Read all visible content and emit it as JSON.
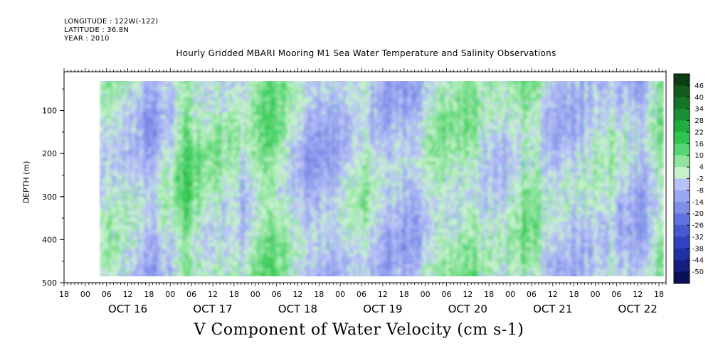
{
  "header": {
    "longitude": "LONGITUDE : 122W(-122)",
    "latitude": "LATITUDE : 36.8N",
    "year": "YEAR : 2010"
  },
  "chart_data": {
    "type": "heatmap",
    "title": "Hourly Gridded MBARI Mooring M1 Sea Water Temperature and Salinity Observations",
    "bottom_title": "V Component of Water Velocity (cm s-1)",
    "ylabel": "DEPTH (m)",
    "xlabel": "",
    "y_ticks": [
      100,
      200,
      300,
      400,
      500
    ],
    "ylim": [
      500,
      10
    ],
    "y_data_range": [
      20,
      490
    ],
    "x_range_hours": "2010-10-15T18:00 to 2010-10-22T20:00",
    "x_data_start": "2010-10-16T04:00",
    "x_data_end": "2010-10-22T19:00",
    "hour_tick_labels": [
      "00",
      "06",
      "12",
      "18"
    ],
    "day_labels": [
      "OCT 16",
      "OCT 17",
      "OCT 18",
      "OCT 19",
      "OCT 20",
      "OCT 21",
      "OCT 22"
    ],
    "colorbar_labels": [
      "46",
      "40",
      "34",
      "28",
      "22",
      "16",
      "10",
      "4",
      "-2",
      "-8",
      "-14",
      "-20",
      "-26",
      "-32",
      "-38",
      "-44",
      "-50"
    ],
    "colorbar_colors": [
      "#0a3d12",
      "#0f5a1c",
      "#137526",
      "#189033",
      "#1fae3e",
      "#2ec64e",
      "#55d672",
      "#8fe59e",
      "#c6f1cc",
      "#b9c2f6",
      "#9aa7f0",
      "#7d8de8",
      "#5f72df",
      "#4559d2",
      "#2f43c0",
      "#1f30a4",
      "#121e80",
      "#0a0f58"
    ],
    "profile_time_series": {
      "description_units": "cm s-1, approximate depth-mean V per time bin",
      "times": [
        "2010-10-16T04:00",
        "2010-10-16T12:00",
        "2010-10-16T20:00",
        "2010-10-17T04:00",
        "2010-10-17T12:00",
        "2010-10-17T20:00",
        "2010-10-18T04:00",
        "2010-10-18T12:00",
        "2010-10-18T20:00",
        "2010-10-19T04:00",
        "2010-10-19T12:00",
        "2010-10-19T20:00",
        "2010-10-20T04:00",
        "2010-10-20T12:00",
        "2010-10-20T20:00",
        "2010-10-21T04:00",
        "2010-10-21T12:00",
        "2010-10-21T20:00",
        "2010-10-22T04:00",
        "2010-10-22T12:00",
        "2010-10-22T19:00"
      ],
      "values": [
        2,
        -4,
        -8,
        8,
        4,
        -2,
        10,
        -6,
        -10,
        4,
        -6,
        -8,
        2,
        4,
        -4,
        8,
        -6,
        -4,
        2,
        -10,
        6
      ]
    }
  }
}
